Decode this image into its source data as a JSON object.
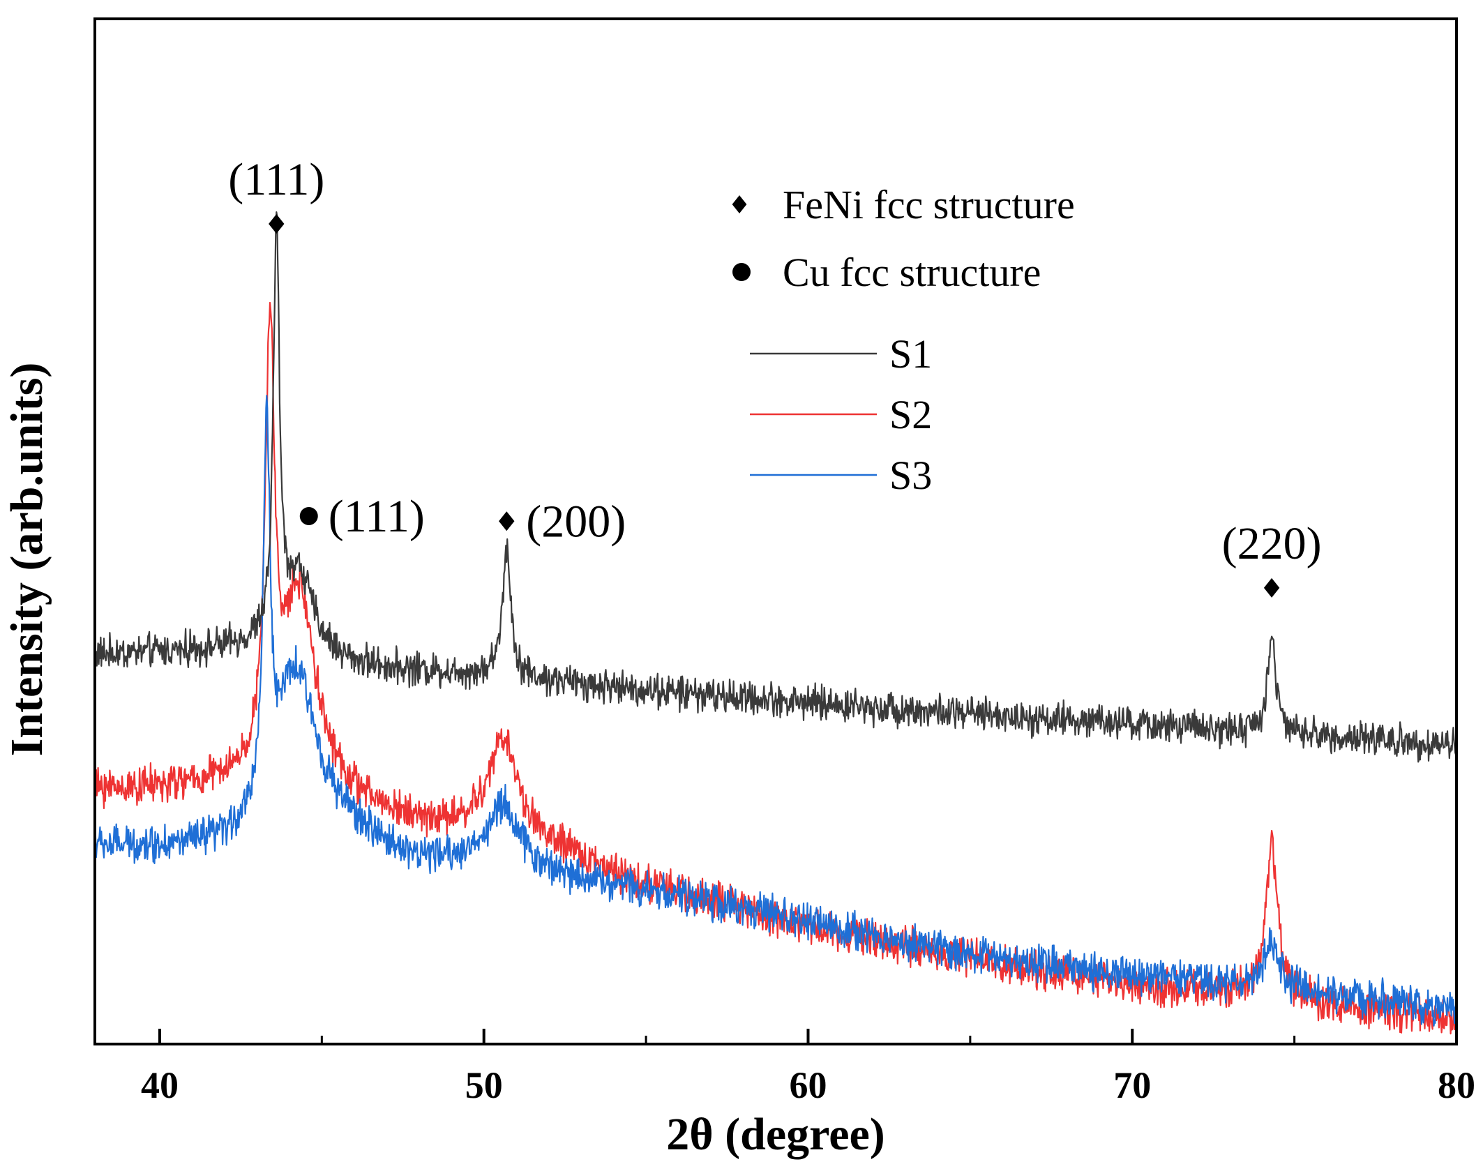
{
  "chart_data": {
    "type": "line",
    "title": "",
    "xlabel": "2θ (degree)",
    "ylabel": "Intensity (arb.units)",
    "xlim": [
      38,
      80
    ],
    "ylim": [
      0,
      100
    ],
    "x_ticks": [
      40,
      50,
      60,
      70,
      80
    ],
    "x_tick_labels": [
      "40",
      "50",
      "60",
      "70",
      "80"
    ],
    "x_minor_ticks": [
      45,
      55,
      65,
      75
    ],
    "y_ticks_shown": false,
    "grid": false,
    "legend": {
      "placement": "top-right",
      "markers": [
        {
          "symbol": "diamond",
          "label": "FeNi fcc structure"
        },
        {
          "symbol": "circle",
          "label": "Cu fcc structure"
        }
      ],
      "lines": [
        {
          "series": "S1",
          "label": "S1"
        },
        {
          "series": "S2",
          "label": "S2"
        },
        {
          "series": "S3",
          "label": "S3"
        }
      ]
    },
    "series": [
      {
        "name": "S1",
        "color": "#3a3a3a",
        "noise": 1.2,
        "baseline": [
          [
            38,
            38.0
          ],
          [
            43,
            38.5
          ],
          [
            46,
            36.8
          ],
          [
            50,
            36.0
          ],
          [
            55,
            34.5
          ],
          [
            60,
            33.3
          ],
          [
            65,
            32.2
          ],
          [
            70,
            31.2
          ],
          [
            75,
            30.2
          ],
          [
            80,
            29.2
          ]
        ],
        "peaks": [
          {
            "center": 43.6,
            "height": 40.0,
            "width": 0.11
          },
          {
            "center": 44.3,
            "height": 8.0,
            "width": 0.55
          },
          {
            "center": 50.7,
            "height": 12.5,
            "width": 0.16
          },
          {
            "center": 74.3,
            "height": 9.5,
            "width": 0.15
          }
        ]
      },
      {
        "name": "S2",
        "color": "#ee3333",
        "noise": 1.3,
        "baseline": [
          [
            38,
            24.8
          ],
          [
            42,
            24.8
          ],
          [
            46,
            22.8
          ],
          [
            48,
            21.3
          ],
          [
            50,
            20.5
          ],
          [
            52,
            19.0
          ],
          [
            55,
            15.5
          ],
          [
            60,
            11.5
          ],
          [
            65,
            8.3
          ],
          [
            70,
            5.8
          ],
          [
            75,
            4.3
          ],
          [
            80,
            2.2
          ]
        ],
        "peaks": [
          {
            "center": 43.4,
            "height": 41.5,
            "width": 0.17
          },
          {
            "center": 44.3,
            "height": 20.0,
            "width": 0.65
          },
          {
            "center": 50.6,
            "height": 9.5,
            "width": 0.55
          },
          {
            "center": 74.3,
            "height": 15.0,
            "width": 0.22
          }
        ]
      },
      {
        "name": "S3",
        "color": "#1f6fd6",
        "noise": 1.3,
        "baseline": [
          [
            38,
            19.2
          ],
          [
            42,
            18.5
          ],
          [
            46,
            19.5
          ],
          [
            48,
            17.5
          ],
          [
            50,
            17.5
          ],
          [
            52,
            16.5
          ],
          [
            55,
            15.0
          ],
          [
            60,
            11.8
          ],
          [
            65,
            8.8
          ],
          [
            70,
            6.7
          ],
          [
            75,
            5.2
          ],
          [
            80,
            3.5
          ]
        ],
        "peaks": [
          {
            "center": 43.3,
            "height": 36.0,
            "width": 0.12
          },
          {
            "center": 44.2,
            "height": 17.0,
            "width": 0.85
          },
          {
            "center": 50.6,
            "height": 6.0,
            "width": 0.55
          },
          {
            "center": 74.3,
            "height": 4.0,
            "width": 0.3
          }
        ]
      }
    ],
    "annotations": [
      {
        "text": "(111)",
        "marker": "diamond",
        "x": 43.6,
        "y": 80.0,
        "label_position": "above"
      },
      {
        "text": "(111)",
        "marker": "circle",
        "x": 44.6,
        "y": 51.5,
        "label_position": "right"
      },
      {
        "text": "(200)",
        "marker": "diamond",
        "x": 50.7,
        "y": 51.0,
        "label_position": "right"
      },
      {
        "text": "(220)",
        "marker": "diamond",
        "x": 74.3,
        "y": 44.5,
        "label_position": "above"
      }
    ]
  }
}
